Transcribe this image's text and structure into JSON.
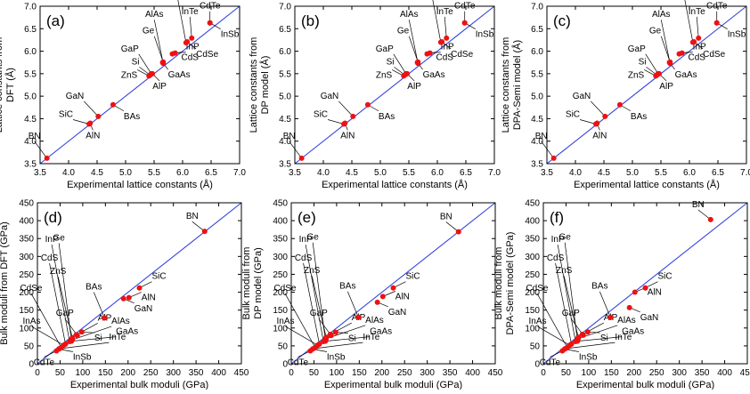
{
  "chart_data": [
    {
      "type": "scatter",
      "panel_label": "(a)",
      "xlabel": "Experimental lattice constants (Å)",
      "ylabel": [
        "Lattice constants from",
        "DFT (Å)"
      ],
      "xlim": [
        3.5,
        7.0
      ],
      "ylim": [
        3.5,
        7.0
      ],
      "xticks": [
        3.5,
        4.0,
        4.5,
        5.0,
        5.5,
        6.0,
        6.5,
        7.0
      ],
      "yticks": [
        3.5,
        4.0,
        4.5,
        5.0,
        5.5,
        6.0,
        6.5,
        7.0
      ],
      "tick_format": "1",
      "grid": false,
      "reference_line": "y = x",
      "points": [
        {
          "name": "BN",
          "x": 3.62,
          "y": 3.62
        },
        {
          "name": "SiC",
          "x": 4.36,
          "y": 4.38
        },
        {
          "name": "AlN",
          "x": 4.38,
          "y": 4.4
        },
        {
          "name": "GaN",
          "x": 4.52,
          "y": 4.55
        },
        {
          "name": "BAs",
          "x": 4.78,
          "y": 4.81
        },
        {
          "name": "ZnS",
          "x": 5.41,
          "y": 5.45
        },
        {
          "name": "Si",
          "x": 5.43,
          "y": 5.47
        },
        {
          "name": "GaP",
          "x": 5.45,
          "y": 5.5
        },
        {
          "name": "AlP",
          "x": 5.47,
          "y": 5.5
        },
        {
          "name": "GaAs",
          "x": 5.65,
          "y": 5.75
        },
        {
          "name": "Ge",
          "x": 5.66,
          "y": 5.76
        },
        {
          "name": "AlAs",
          "x": 5.66,
          "y": 5.73
        },
        {
          "name": "CdS",
          "x": 5.82,
          "y": 5.94
        },
        {
          "name": "InP",
          "x": 5.87,
          "y": 5.96
        },
        {
          "name": "InAs",
          "x": 6.06,
          "y": 6.19
        },
        {
          "name": "CdSe",
          "x": 6.08,
          "y": 6.21
        },
        {
          "name": "InTe",
          "x": 6.16,
          "y": 6.29
        },
        {
          "name": "InSb",
          "x": 6.48,
          "y": 6.63
        },
        {
          "name": "CdTe",
          "x": 6.48,
          "y": 6.63
        }
      ]
    },
    {
      "type": "scatter",
      "panel_label": "(b)",
      "xlabel": "Experimental lattice constants (Å)",
      "ylabel": [
        "Lattice constants from",
        "DP model (Å)"
      ],
      "xlim": [
        3.5,
        7.0
      ],
      "ylim": [
        3.5,
        7.0
      ],
      "xticks": [
        3.5,
        4.0,
        4.5,
        5.0,
        5.5,
        6.0,
        6.5,
        7.0
      ],
      "yticks": [
        3.5,
        4.0,
        4.5,
        5.0,
        5.5,
        6.0,
        6.5,
        7.0
      ],
      "tick_format": "1",
      "grid": false,
      "reference_line": "y = x",
      "points": [
        {
          "name": "BN",
          "x": 3.62,
          "y": 3.62
        },
        {
          "name": "SiC",
          "x": 4.36,
          "y": 4.38
        },
        {
          "name": "AlN",
          "x": 4.38,
          "y": 4.4
        },
        {
          "name": "GaN",
          "x": 4.52,
          "y": 4.55
        },
        {
          "name": "BAs",
          "x": 4.78,
          "y": 4.81
        },
        {
          "name": "ZnS",
          "x": 5.41,
          "y": 5.45
        },
        {
          "name": "Si",
          "x": 5.43,
          "y": 5.47
        },
        {
          "name": "GaP",
          "x": 5.45,
          "y": 5.5
        },
        {
          "name": "AlP",
          "x": 5.47,
          "y": 5.5
        },
        {
          "name": "GaAs",
          "x": 5.65,
          "y": 5.75
        },
        {
          "name": "Ge",
          "x": 5.66,
          "y": 5.76
        },
        {
          "name": "AlAs",
          "x": 5.66,
          "y": 5.73
        },
        {
          "name": "CdS",
          "x": 5.82,
          "y": 5.94
        },
        {
          "name": "InP",
          "x": 5.87,
          "y": 5.96
        },
        {
          "name": "InAs",
          "x": 6.06,
          "y": 6.2
        },
        {
          "name": "CdSe",
          "x": 6.08,
          "y": 6.21
        },
        {
          "name": "InTe",
          "x": 6.16,
          "y": 6.29
        },
        {
          "name": "InSb",
          "x": 6.48,
          "y": 6.63
        },
        {
          "name": "CdTe",
          "x": 6.48,
          "y": 6.63
        }
      ]
    },
    {
      "type": "scatter",
      "panel_label": "(c)",
      "xlabel": "Experimental lattice constants (Å)",
      "ylabel": [
        "Lattice constants from",
        "DPA-Semi model (Å)"
      ],
      "xlim": [
        3.5,
        7.0
      ],
      "ylim": [
        3.5,
        7.0
      ],
      "xticks": [
        3.5,
        4.0,
        4.5,
        5.0,
        5.5,
        6.0,
        6.5,
        7.0
      ],
      "yticks": [
        3.5,
        4.0,
        4.5,
        5.0,
        5.5,
        6.0,
        6.5,
        7.0
      ],
      "tick_format": "1",
      "grid": false,
      "reference_line": "y = x",
      "points": [
        {
          "name": "BN",
          "x": 3.62,
          "y": 3.62
        },
        {
          "name": "SiC",
          "x": 4.36,
          "y": 4.38
        },
        {
          "name": "AlN",
          "x": 4.38,
          "y": 4.4
        },
        {
          "name": "GaN",
          "x": 4.52,
          "y": 4.55
        },
        {
          "name": "BAs",
          "x": 4.78,
          "y": 4.81
        },
        {
          "name": "ZnS",
          "x": 5.41,
          "y": 5.45
        },
        {
          "name": "Si",
          "x": 5.43,
          "y": 5.47
        },
        {
          "name": "GaP",
          "x": 5.45,
          "y": 5.5
        },
        {
          "name": "AlP",
          "x": 5.47,
          "y": 5.5
        },
        {
          "name": "GaAs",
          "x": 5.65,
          "y": 5.75
        },
        {
          "name": "Ge",
          "x": 5.66,
          "y": 5.76
        },
        {
          "name": "AlAs",
          "x": 5.66,
          "y": 5.73
        },
        {
          "name": "CdS",
          "x": 5.82,
          "y": 5.94
        },
        {
          "name": "InP",
          "x": 5.87,
          "y": 5.96
        },
        {
          "name": "InAs",
          "x": 6.06,
          "y": 6.2
        },
        {
          "name": "CdSe",
          "x": 6.08,
          "y": 6.21
        },
        {
          "name": "InTe",
          "x": 6.16,
          "y": 6.29
        },
        {
          "name": "InSb",
          "x": 6.48,
          "y": 6.63
        },
        {
          "name": "CdTe",
          "x": 6.48,
          "y": 6.63
        }
      ]
    },
    {
      "type": "scatter",
      "panel_label": "(d)",
      "xlabel": "Experimental bulk moduli (GPa)",
      "ylabel": [
        "Bulk moduli from DFT (GPa)"
      ],
      "xlim": [
        0,
        450
      ],
      "ylim": [
        0,
        450
      ],
      "xticks": [
        0,
        50,
        100,
        150,
        200,
        250,
        300,
        350,
        400,
        450
      ],
      "yticks": [
        0,
        50,
        100,
        150,
        200,
        250,
        300,
        350,
        400,
        450
      ],
      "tick_format": "0",
      "grid": false,
      "reference_line": "y = x",
      "points": [
        {
          "name": "BN",
          "x": 369,
          "y": 370
        },
        {
          "name": "SiC",
          "x": 225,
          "y": 212
        },
        {
          "name": "AlN",
          "x": 202,
          "y": 185
        },
        {
          "name": "GaN",
          "x": 190,
          "y": 182
        },
        {
          "name": "BAs",
          "x": 148,
          "y": 128
        },
        {
          "name": "Si",
          "x": 98,
          "y": 89
        },
        {
          "name": "GaP",
          "x": 88,
          "y": 79
        },
        {
          "name": "AlP",
          "x": 86,
          "y": 81
        },
        {
          "name": "ZnS",
          "x": 77,
          "y": 72
        },
        {
          "name": "Ge",
          "x": 75,
          "y": 66
        },
        {
          "name": "AlAs",
          "x": 77,
          "y": 67
        },
        {
          "name": "GaAs",
          "x": 75,
          "y": 63
        },
        {
          "name": "InP",
          "x": 71,
          "y": 62
        },
        {
          "name": "CdS",
          "x": 62,
          "y": 55
        },
        {
          "name": "InAs",
          "x": 58,
          "y": 52
        },
        {
          "name": "CdSe",
          "x": 53,
          "y": 45
        },
        {
          "name": "InTe",
          "x": 48,
          "y": 42
        },
        {
          "name": "InSb",
          "x": 47,
          "y": 41
        },
        {
          "name": "CdTe",
          "x": 42,
          "y": 36
        }
      ]
    },
    {
      "type": "scatter",
      "panel_label": "(e)",
      "xlabel": "Experimental bulk moduli (GPa)",
      "ylabel": [
        "Bulk moduli from",
        "DP model (GPa)"
      ],
      "xlim": [
        0,
        450
      ],
      "ylim": [
        0,
        450
      ],
      "xticks": [
        0,
        50,
        100,
        150,
        200,
        250,
        300,
        350,
        400,
        450
      ],
      "yticks": [
        0,
        50,
        100,
        150,
        200,
        250,
        300,
        350,
        400,
        450
      ],
      "tick_format": "0",
      "grid": false,
      "reference_line": "y = x",
      "points": [
        {
          "name": "BN",
          "x": 369,
          "y": 369
        },
        {
          "name": "SiC",
          "x": 225,
          "y": 212
        },
        {
          "name": "AlN",
          "x": 202,
          "y": 188
        },
        {
          "name": "GaN",
          "x": 190,
          "y": 172
        },
        {
          "name": "BAs",
          "x": 148,
          "y": 130
        },
        {
          "name": "Si",
          "x": 98,
          "y": 88
        },
        {
          "name": "GaP",
          "x": 88,
          "y": 79
        },
        {
          "name": "AlP",
          "x": 86,
          "y": 82
        },
        {
          "name": "ZnS",
          "x": 77,
          "y": 74
        },
        {
          "name": "Ge",
          "x": 75,
          "y": 68
        },
        {
          "name": "AlAs",
          "x": 77,
          "y": 70
        },
        {
          "name": "GaAs",
          "x": 75,
          "y": 63
        },
        {
          "name": "InP",
          "x": 71,
          "y": 62
        },
        {
          "name": "CdS",
          "x": 62,
          "y": 55
        },
        {
          "name": "InAs",
          "x": 58,
          "y": 52
        },
        {
          "name": "CdSe",
          "x": 53,
          "y": 45
        },
        {
          "name": "InTe",
          "x": 48,
          "y": 42
        },
        {
          "name": "InSb",
          "x": 47,
          "y": 41
        },
        {
          "name": "CdTe",
          "x": 42,
          "y": 36
        }
      ]
    },
    {
      "type": "scatter",
      "panel_label": "(f)",
      "xlabel": "Experimental bulk moduli (GPa)",
      "ylabel": [
        "Bulk moduli from",
        "DPA-Semi model (GPa)"
      ],
      "xlim": [
        0,
        450
      ],
      "ylim": [
        0,
        450
      ],
      "xticks": [
        0,
        50,
        100,
        150,
        200,
        250,
        300,
        350,
        400,
        450
      ],
      "yticks": [
        0,
        50,
        100,
        150,
        200,
        250,
        300,
        350,
        400,
        450
      ],
      "tick_format": "0",
      "grid": false,
      "reference_line": "y = x",
      "points": [
        {
          "name": "BN",
          "x": 369,
          "y": 403
        },
        {
          "name": "SiC",
          "x": 225,
          "y": 212
        },
        {
          "name": "AlN",
          "x": 202,
          "y": 200
        },
        {
          "name": "GaN",
          "x": 190,
          "y": 157
        },
        {
          "name": "BAs",
          "x": 148,
          "y": 130
        },
        {
          "name": "Si",
          "x": 98,
          "y": 89
        },
        {
          "name": "GaP",
          "x": 88,
          "y": 80
        },
        {
          "name": "AlP",
          "x": 86,
          "y": 82
        },
        {
          "name": "ZnS",
          "x": 77,
          "y": 74
        },
        {
          "name": "Ge",
          "x": 75,
          "y": 68
        },
        {
          "name": "AlAs",
          "x": 77,
          "y": 70
        },
        {
          "name": "GaAs",
          "x": 75,
          "y": 63
        },
        {
          "name": "InP",
          "x": 71,
          "y": 62
        },
        {
          "name": "CdS",
          "x": 62,
          "y": 55
        },
        {
          "name": "InAs",
          "x": 58,
          "y": 52
        },
        {
          "name": "CdSe",
          "x": 53,
          "y": 45
        },
        {
          "name": "InTe",
          "x": 48,
          "y": 42
        },
        {
          "name": "InSb",
          "x": 47,
          "y": 41
        },
        {
          "name": "CdTe",
          "x": 42,
          "y": 36
        }
      ]
    }
  ],
  "colors": {
    "marker": "#ee1111",
    "reference_line": "#3344dd",
    "axes": "#000000",
    "leader": "#000000"
  }
}
